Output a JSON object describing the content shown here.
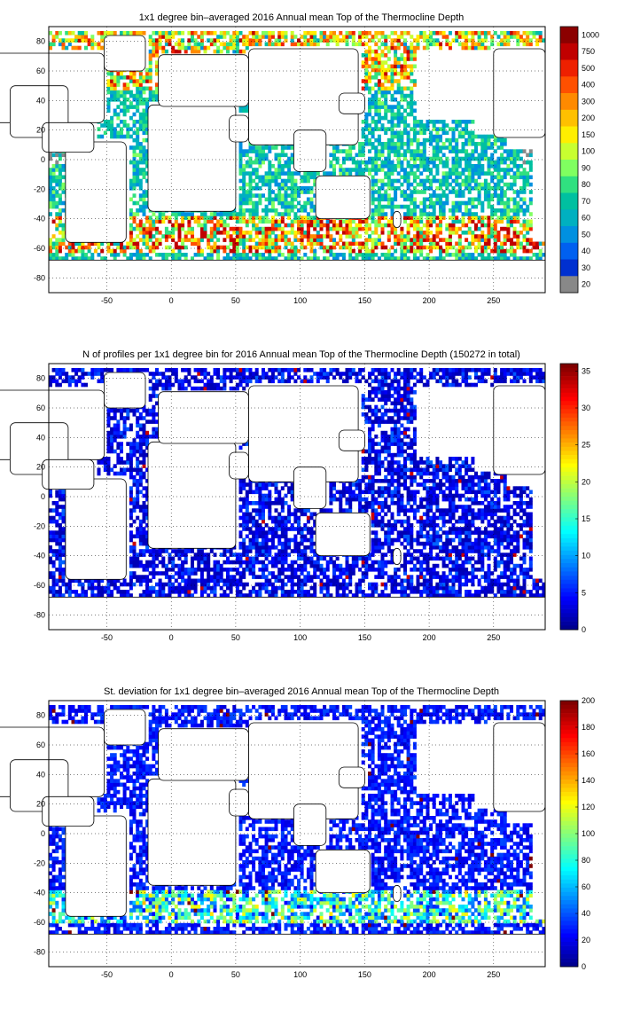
{
  "panels": [
    {
      "title": "1x1 degree bin–averaged 2016 Annual mean Top of the Thermocline Depth",
      "x_ticks": [
        "-50",
        "0",
        "50",
        "100",
        "150",
        "200",
        "250"
      ],
      "y_ticks": [
        "80",
        "60",
        "40",
        "20",
        "0",
        "-20",
        "-40",
        "-60",
        "-80"
      ],
      "colorbar": {
        "labels": [
          "1000",
          "750",
          "500",
          "400",
          "300",
          "200",
          "150",
          "100",
          "90",
          "80",
          "70",
          "60",
          "50",
          "40",
          "30",
          "20"
        ],
        "colors": [
          "#8b0000",
          "#c00000",
          "#ee2000",
          "#ff5000",
          "#ff8a00",
          "#ffc000",
          "#ffee00",
          "#c8ff30",
          "#80ff60",
          "#30e080",
          "#00c0a0",
          "#00b0c0",
          "#0090e0",
          "#0060f0",
          "#0030d0",
          "#888888"
        ],
        "type": "discrete"
      },
      "palette": "levels"
    },
    {
      "title": "N of profiles per 1x1 degree bin for 2016 Annual mean Top of the Thermocline Depth  (150272 in total)",
      "x_ticks": [
        "-50",
        "0",
        "50",
        "100",
        "150",
        "200",
        "250"
      ],
      "y_ticks": [
        "80",
        "60",
        "40",
        "20",
        "0",
        "-20",
        "-40",
        "-60",
        "-80"
      ],
      "colorbar": {
        "labels": [
          "35",
          "30",
          "25",
          "20",
          "15",
          "10",
          "5",
          "0"
        ],
        "range": [
          0,
          36
        ],
        "type": "jet"
      },
      "palette": "count"
    },
    {
      "title": "St. deviation for 1x1 degree bin–averaged 2016 Annual mean Top of the Thermocline Depth",
      "x_ticks": [
        "-50",
        "0",
        "50",
        "100",
        "150",
        "200",
        "250"
      ],
      "y_ticks": [
        "80",
        "60",
        "40",
        "20",
        "0",
        "-20",
        "-40",
        "-60",
        "-80"
      ],
      "colorbar": {
        "labels": [
          "200",
          "180",
          "160",
          "140",
          "120",
          "100",
          "80",
          "60",
          "40",
          "20",
          "0"
        ],
        "range": [
          0,
          200
        ],
        "type": "jet"
      },
      "palette": "std"
    }
  ]
}
